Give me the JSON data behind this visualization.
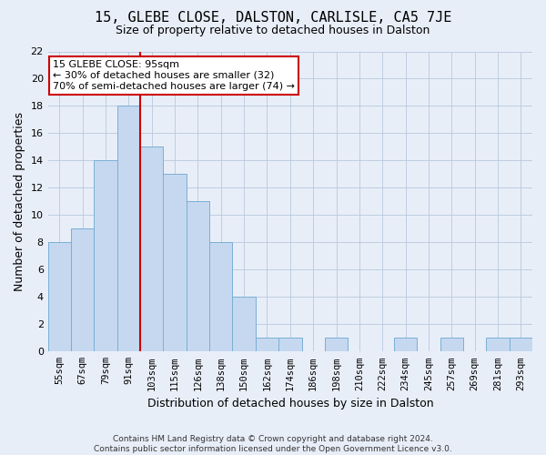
{
  "title": "15, GLEBE CLOSE, DALSTON, CARLISLE, CA5 7JE",
  "subtitle": "Size of property relative to detached houses in Dalston",
  "xlabel": "Distribution of detached houses by size in Dalston",
  "ylabel": "Number of detached properties",
  "bin_labels": [
    "55sqm",
    "67sqm",
    "79sqm",
    "91sqm",
    "103sqm",
    "115sqm",
    "126sqm",
    "138sqm",
    "150sqm",
    "162sqm",
    "174sqm",
    "186sqm",
    "198sqm",
    "210sqm",
    "222sqm",
    "234sqm",
    "245sqm",
    "257sqm",
    "269sqm",
    "281sqm",
    "293sqm"
  ],
  "values": [
    8,
    9,
    14,
    18,
    15,
    13,
    11,
    8,
    4,
    1,
    1,
    0,
    1,
    0,
    0,
    1,
    0,
    1,
    0,
    1,
    1
  ],
  "bar_color": "#c5d8f0",
  "bar_edge_color": "#7aafd4",
  "ylim": [
    0,
    22
  ],
  "yticks": [
    0,
    2,
    4,
    6,
    8,
    10,
    12,
    14,
    16,
    18,
    20,
    22
  ],
  "red_line_x": 3.5,
  "red_line_color": "#cc0000",
  "annotation_text_line1": "15 GLEBE CLOSE: 95sqm",
  "annotation_text_line2": "← 30% of detached houses are smaller (32)",
  "annotation_text_line3": "70% of semi-detached houses are larger (74) →",
  "annotation_box_color": "#ffffff",
  "annotation_box_edge": "#cc0000",
  "footer_line1": "Contains HM Land Registry data © Crown copyright and database right 2024.",
  "footer_line2": "Contains public sector information licensed under the Open Government Licence v3.0.",
  "background_color": "#e8eef8",
  "grid_color": "#b8c8dc",
  "title_fontsize": 11,
  "subtitle_fontsize": 9,
  "ylabel_fontsize": 9,
  "xlabel_fontsize": 9,
  "tick_fontsize": 8,
  "footer_fontsize": 6.5
}
